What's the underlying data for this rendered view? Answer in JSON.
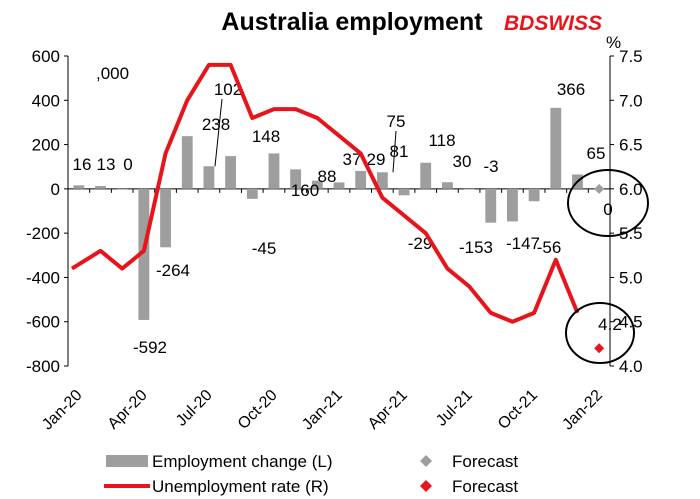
{
  "chart_data": {
    "type": "bar",
    "title": "Australia employment",
    "left_unit": ",000",
    "right_unit": "%",
    "brand": "BDSWISS",
    "x": [
      "Jan-20",
      "Feb-20",
      "Mar-20",
      "Apr-20",
      "May-20",
      "Jun-20",
      "Jul-20",
      "Aug-20",
      "Sep-20",
      "Oct-20",
      "Nov-20",
      "Dec-20",
      "Jan-21",
      "Feb-21",
      "Mar-21",
      "Apr-21",
      "May-21",
      "Jun-21",
      "Jul-21",
      "Aug-21",
      "Sep-21",
      "Oct-21",
      "Nov-21",
      "Dec-21",
      "Jan-22"
    ],
    "x_tick_labels": [
      "Jan-20",
      "Apr-20",
      "Jul-20",
      "Oct-20",
      "Jan-21",
      "Apr-21",
      "Jul-21",
      "Oct-21",
      "Jan-22"
    ],
    "ylim_left": [
      -800,
      600
    ],
    "yticks_left": [
      "600",
      "400",
      "200",
      "0",
      "-200",
      "-400",
      "-600",
      "-800"
    ],
    "ylim_right": [
      4.0,
      7.5
    ],
    "yticks_right": [
      "7.5",
      "7.0",
      "6.5",
      "6.0",
      "5.5",
      "5.0",
      "4.5",
      "4.0"
    ],
    "series": [
      {
        "name": "Employment change (L)",
        "color": "#9e9e9e",
        "values": [
          16,
          13,
          0,
          -592,
          -264,
          238,
          102,
          148,
          -45,
          160,
          88,
          37,
          29,
          81,
          75,
          -29,
          118,
          30,
          -3,
          -153,
          -147,
          -56,
          366,
          65,
          null
        ],
        "labels": [
          "16",
          "13",
          "0",
          "-592",
          "-264",
          "238",
          "102",
          "148",
          "-45",
          "160",
          "88",
          "37",
          "29",
          "81",
          "75",
          "-29",
          "118",
          "30",
          "-3",
          "-153",
          "-147",
          "-56",
          "366",
          "65",
          ""
        ]
      },
      {
        "name": "Unemployment rate (R)",
        "color": "#e8141b",
        "values": [
          5.1,
          5.3,
          5.1,
          5.3,
          6.4,
          7.0,
          7.4,
          7.4,
          6.8,
          6.9,
          6.9,
          6.8,
          6.6,
          6.4,
          5.9,
          5.7,
          5.5,
          5.1,
          4.9,
          4.6,
          4.5,
          4.6,
          5.2,
          4.6,
          4.2
        ]
      }
    ],
    "forecasts": [
      {
        "name": "Forecast",
        "series": "Employment change (L)",
        "value": 0,
        "label": "0",
        "color": "#9e9e9e"
      },
      {
        "name": "Forecast",
        "series": "Unemployment rate (R)",
        "value": 4.2,
        "label": "4.2",
        "color": "#e8141b"
      }
    ],
    "legend": [
      {
        "text": "Employment change (L)",
        "symbol": "bar"
      },
      {
        "text": "Forecast",
        "symbol": "grey-diamond"
      },
      {
        "text": "Unemployment rate (R)",
        "symbol": "red-line"
      },
      {
        "text": "Forecast",
        "symbol": "red-diamond"
      }
    ],
    "legend_position": "bottom",
    "grid": false
  }
}
